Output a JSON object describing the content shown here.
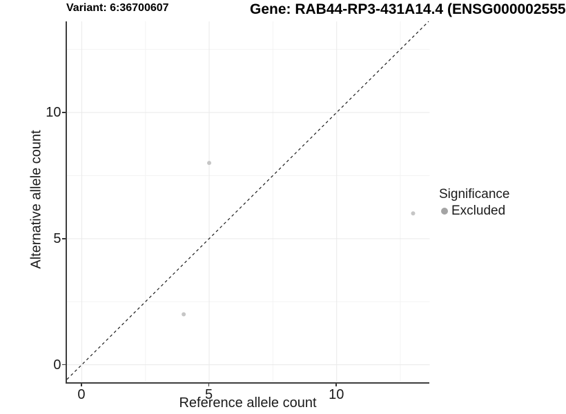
{
  "chart_data": {
    "type": "scatter",
    "titles": [
      "Variant: 6:36700607",
      "Gene: RAB44-RP3-431A14.4 (ENSG000002555"
    ],
    "xlabel": "Reference allele count",
    "ylabel": "Alternative allele count",
    "xlim": [
      -0.58,
      13.65
    ],
    "ylim": [
      -0.68,
      13.61
    ],
    "x_ticks": [
      0,
      5,
      10
    ],
    "y_ticks": [
      0,
      5,
      10
    ],
    "x_minor_gridlines": [
      2.5,
      7.5,
      12.5
    ],
    "y_minor_gridlines": [
      2.5,
      7.5,
      12.5
    ],
    "grid": "major and minor gridlines, very light gray, axis lines left and bottom only",
    "series": [
      {
        "name": "Excluded",
        "color": "#c6c6c6",
        "marker": "circle",
        "points": [
          {
            "x": 4,
            "y": 2
          },
          {
            "x": 5,
            "y": 8
          },
          {
            "x": 13,
            "y": 6
          }
        ]
      }
    ],
    "reference_line": {
      "kind": "identity",
      "slope": 1,
      "intercept": 0,
      "style": "dashed",
      "color": "#1a1a1a"
    },
    "legend": {
      "title": "Significance",
      "position": "right",
      "entries": [
        {
          "label": "Excluded",
          "color": "#a4a4a4",
          "marker": "circle"
        }
      ]
    }
  },
  "colors": {
    "background": "#ffffff",
    "axis_line": "#3d3d3d",
    "tick_mark": "#333333",
    "major_gridline": "#e9e9e9",
    "minor_gridline": "#f3f3f3",
    "text": "#1a1a1a",
    "point_fill": "#c6c6c6",
    "legend_key_fill": "#a4a4a4"
  }
}
